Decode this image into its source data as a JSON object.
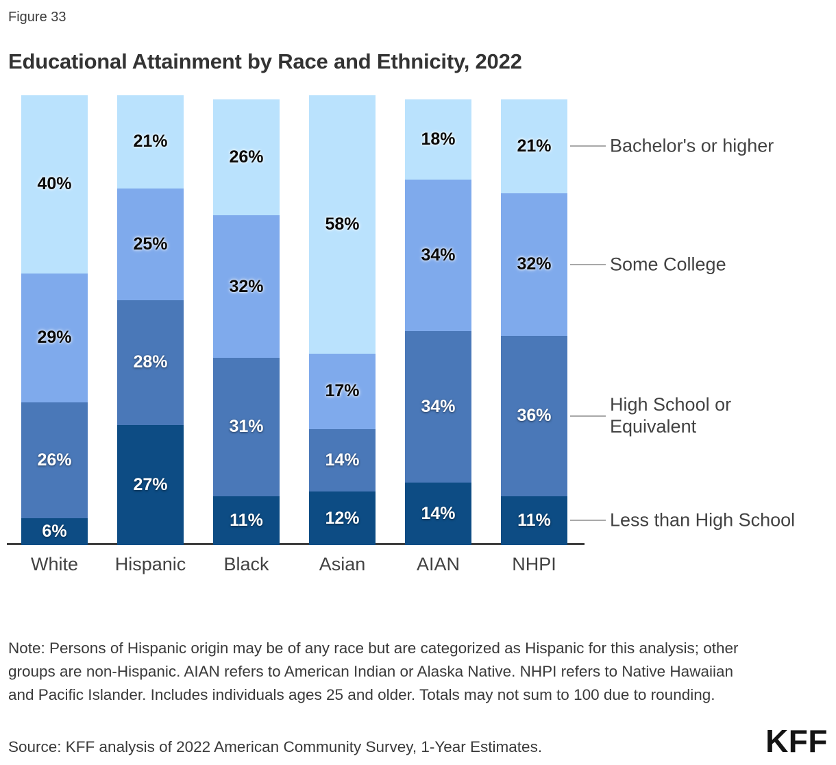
{
  "figure_label": "Figure 33",
  "title": "Educational Attainment by Race and Ethnicity, 2022",
  "note": "Note: Persons of Hispanic origin may be of any race but are categorized as Hispanic for this analysis; other groups are non-Hispanic. AIAN refers to American Indian or Alaska Native. NHPI refers to Native Hawaiian and Pacific Islander. Includes individuals ages 25 and older. Totals may not sum to 100 due to rounding.",
  "source": "Source: KFF analysis of 2022 American Community Survey, 1-Year Estimates.",
  "logo_text": "KFF",
  "colors": {
    "less_than_high_school": "#0d4c84",
    "high_school_or_equivalent": "#4a78b8",
    "some_college": "#7faaec",
    "bachelors_or_higher": "#bae2fd",
    "axis_line": "#3f3f3f",
    "leader_line": "#a8a8a8",
    "text": "#3a3a3a"
  },
  "chart_data": {
    "type": "bar",
    "subtype": "stacked-percent-column",
    "title": "Educational Attainment by Race and Ethnicity, 2022",
    "xlabel": "",
    "ylabel": "",
    "value_suffix": "%",
    "grid": false,
    "legend_position": "right",
    "categories": [
      "White",
      "Hispanic",
      "Black",
      "Asian",
      "AIAN",
      "NHPI"
    ],
    "series": [
      {
        "name": "Less than High School",
        "color": "#0d4c84",
        "label_color": "#ffffff",
        "values": [
          6,
          27,
          11,
          12,
          14,
          11
        ]
      },
      {
        "name": "High School or Equivalent",
        "color": "#4a78b8",
        "label_color": "#ffffff",
        "values": [
          26,
          28,
          31,
          14,
          34,
          36
        ]
      },
      {
        "name": "Some College",
        "color": "#7faaec",
        "label_color": "#000000",
        "values": [
          29,
          25,
          32,
          17,
          34,
          32
        ]
      },
      {
        "name": "Bachelor's or higher",
        "color": "#bae2fd",
        "label_color": "#000000",
        "values": [
          40,
          21,
          26,
          58,
          18,
          21
        ]
      }
    ],
    "legend_entries": [
      {
        "label": "Bachelor's or higher",
        "series": "Bachelor's or higher"
      },
      {
        "label": "Some College",
        "series": "Some College"
      },
      {
        "label": "High School or Equivalent",
        "series": "High School or Equivalent"
      },
      {
        "label": "Less than High School",
        "series": "Less than High School"
      }
    ]
  }
}
